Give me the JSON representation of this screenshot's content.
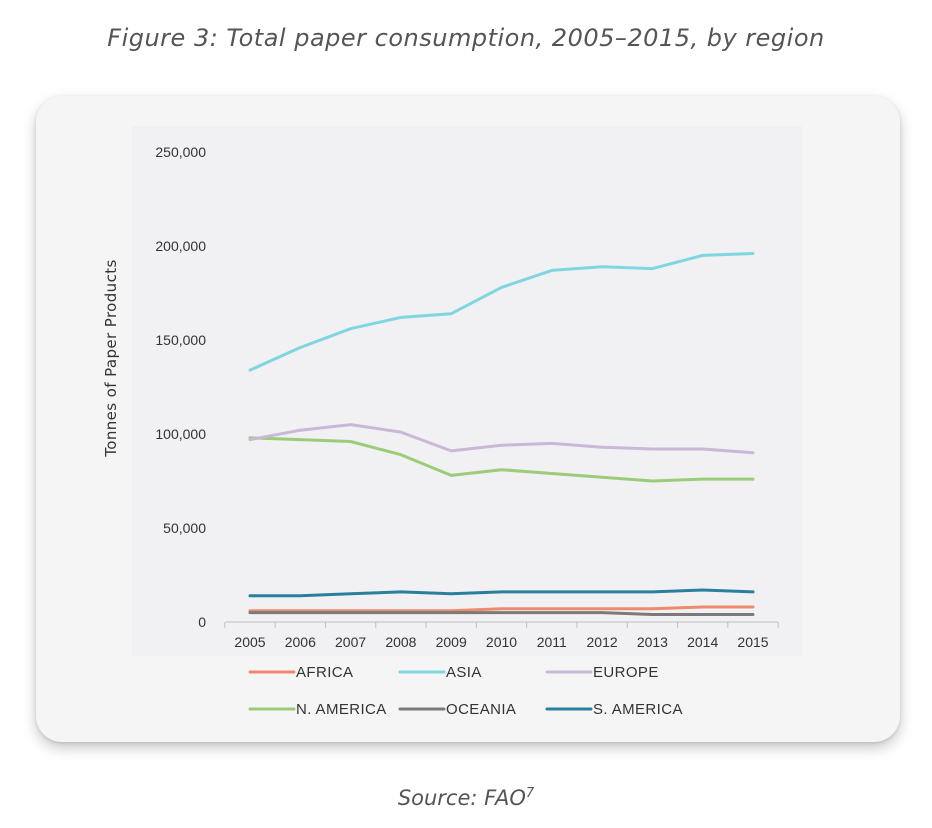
{
  "figure_title": "Figure 3: Total paper consumption, 2005–2015, by region",
  "source": {
    "text": "Source: FAO",
    "footnote": "7"
  },
  "chart_data": {
    "type": "line",
    "title": "",
    "xlabel": "",
    "ylabel": "Tonnes of Paper Products",
    "x": [
      "2005",
      "2006",
      "2007",
      "2008",
      "2009",
      "2010",
      "2011",
      "2012",
      "2013",
      "2014",
      "2015"
    ],
    "ylim": [
      0,
      250000
    ],
    "yticks": [
      0,
      50000,
      100000,
      150000,
      200000,
      250000
    ],
    "ytick_labels": [
      "0",
      "50,000",
      "100,000",
      "150,000",
      "200,000",
      "250,000"
    ],
    "grid": false,
    "legend_position": "bottom",
    "series": [
      {
        "name": "AFRICA",
        "color": "#f08a6c",
        "values": [
          6000,
          6000,
          6000,
          6000,
          6000,
          7000,
          7000,
          7000,
          7000,
          8000,
          8000
        ]
      },
      {
        "name": "ASIA",
        "color": "#7fd6df",
        "values": [
          134000,
          146000,
          156000,
          162000,
          164000,
          178000,
          187000,
          189000,
          188000,
          195000,
          196000
        ]
      },
      {
        "name": "EUROPE",
        "color": "#c9b8d8",
        "values": [
          97000,
          102000,
          105000,
          101000,
          91000,
          94000,
          95000,
          93000,
          92000,
          92000,
          90000
        ]
      },
      {
        "name": "N. AMERICA",
        "color": "#9ccc78",
        "values": [
          98000,
          97000,
          96000,
          89000,
          78000,
          81000,
          79000,
          77000,
          75000,
          76000,
          76000
        ]
      },
      {
        "name": "OCEANIA",
        "color": "#7a7a7a",
        "values": [
          5000,
          5000,
          5000,
          5000,
          5000,
          5000,
          5000,
          5000,
          4000,
          4000,
          4000
        ]
      },
      {
        "name": "S. AMERICA",
        "color": "#2a7f9e",
        "values": [
          14000,
          14000,
          15000,
          16000,
          15000,
          16000,
          16000,
          16000,
          16000,
          17000,
          16000
        ]
      }
    ]
  }
}
